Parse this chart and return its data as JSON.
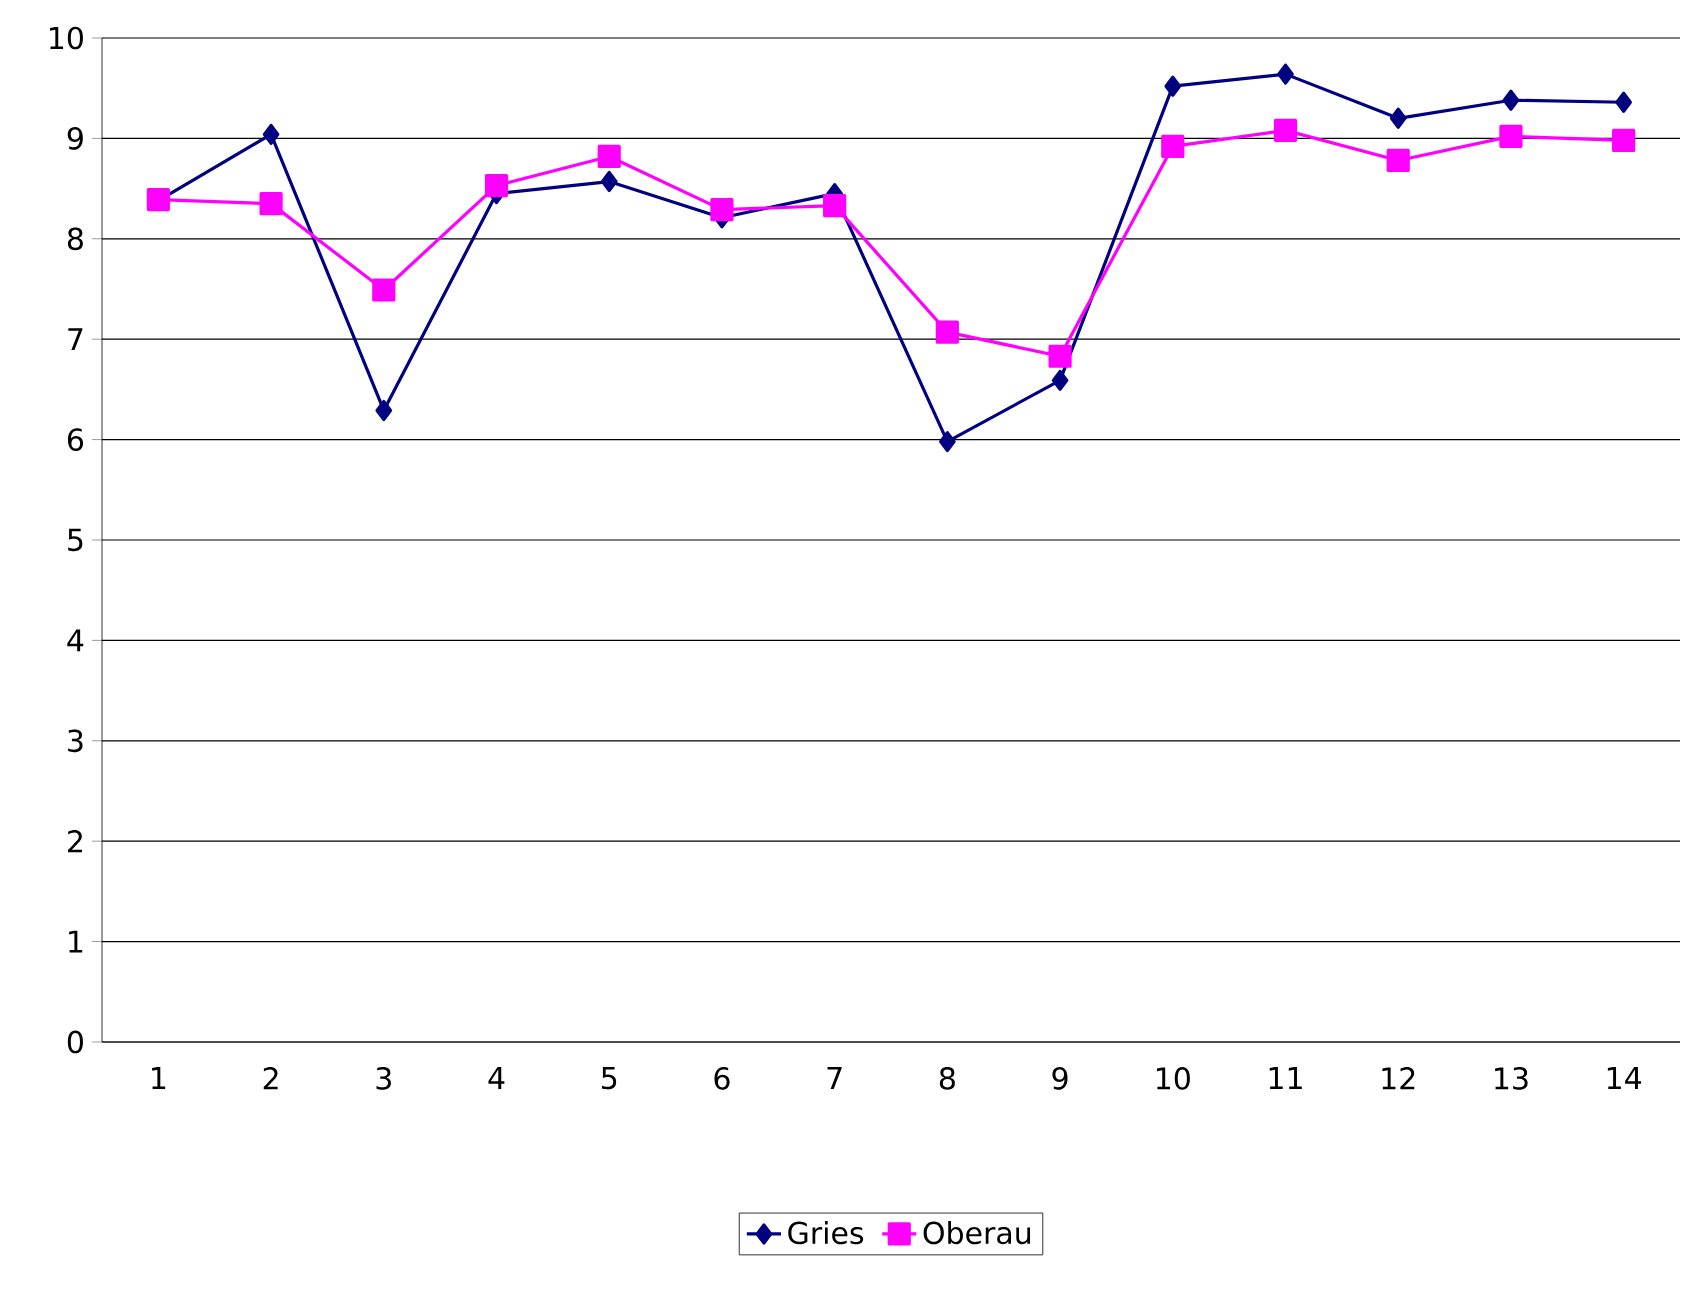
{
  "chart_data": {
    "type": "line",
    "categories": [
      "1",
      "2",
      "3",
      "4",
      "5",
      "6",
      "7",
      "8",
      "9",
      "10",
      "11",
      "12",
      "13",
      "14"
    ],
    "series": [
      {
        "name": "Gries",
        "color": "#000080",
        "marker": "diamond",
        "values": [
          8.38,
          9.04,
          6.29,
          8.45,
          8.57,
          8.21,
          8.45,
          5.98,
          6.59,
          9.52,
          9.64,
          9.2,
          9.38,
          9.36
        ]
      },
      {
        "name": "Oberau",
        "color": "#ff00ff",
        "marker": "square",
        "values": [
          8.39,
          8.35,
          7.49,
          8.53,
          8.82,
          8.29,
          8.33,
          7.07,
          6.83,
          8.92,
          9.08,
          8.78,
          9.02,
          8.98
        ]
      }
    ],
    "ylim": [
      0,
      10
    ],
    "yticks": [
      0,
      1,
      2,
      3,
      4,
      5,
      6,
      7,
      8,
      9,
      10
    ],
    "grid": "y",
    "legend": "bottom"
  }
}
